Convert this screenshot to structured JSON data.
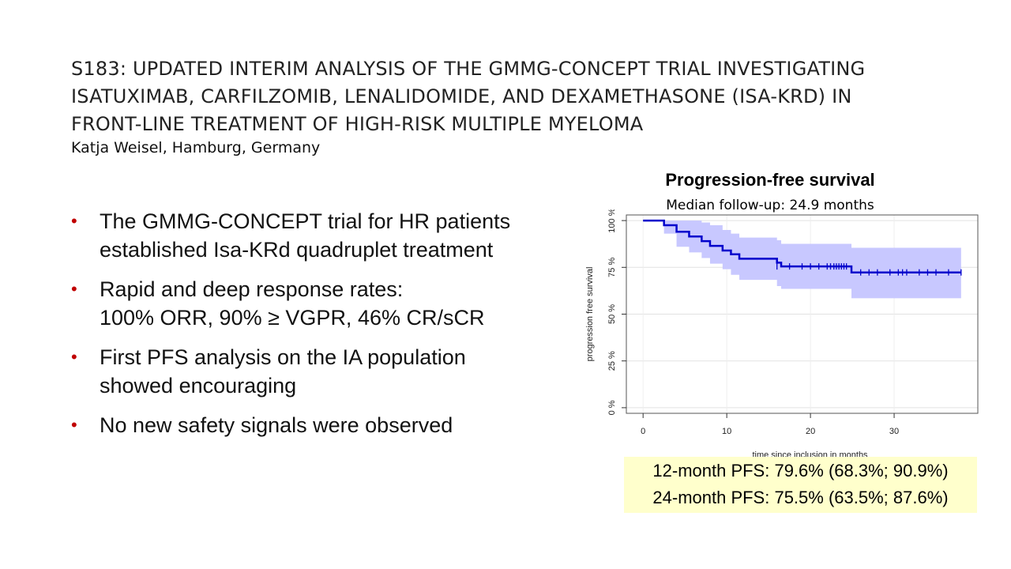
{
  "slide": {
    "title_lines": [
      "S183: UPDATED INTERIM ANALYSIS OF THE GMMG-CONCEPT TRIAL INVESTIGATING",
      "ISATUXIMAB, CARFILZOMIB, LENALIDOMIDE, AND DEXAMETHASONE (ISA-KRD) IN",
      "FRONT-LINE TREATMENT OF HIGH-RISK MULTIPLE MYELOMA"
    ],
    "author": "Katja Weisel, Hamburg, Germany",
    "bullets": [
      "The GMMG-CONCEPT trial for HR patients\nestablished Isa-KRd quadruplet treatment",
      "Rapid and deep response rates:\n100% ORR, 90% ≥ VGPR, 46% CR/sCR",
      "First PFS analysis on the IA population\nshowed encouraging",
      "No new safety signals were observed"
    ],
    "bullet_symbol": "•",
    "pfs_box": {
      "line1": "12-month PFS:  79.6% (68.3%; 90.9%)",
      "line2": "24-month PFS:  75.5% (63.5%; 87.6%)"
    },
    "colors": {
      "bullet": "#c00000",
      "curve": "#0000cc",
      "ci_band": "#c8c8ff",
      "box": "#ffffcc"
    }
  },
  "chart_data": {
    "type": "line",
    "title": "Progression-free survival",
    "subtitle": "Median follow-up: 24.9 months",
    "xlabel": "time since inclusion in months",
    "ylabel": "progression free survival",
    "xlim": [
      -2,
      40
    ],
    "ylim": [
      -3,
      103
    ],
    "xticks": [
      0,
      10,
      20,
      30
    ],
    "xtick_labels": [
      "0",
      "10",
      "20",
      "30"
    ],
    "yticks": [
      0,
      25,
      50,
      75,
      100
    ],
    "ytick_labels": [
      "0 %",
      "25 %",
      "50 %",
      "75 %",
      "100 %"
    ],
    "grid": true,
    "series": [
      {
        "kind": "step",
        "x": [
          0,
          2.5,
          4,
          5.5,
          7,
          8,
          9.5,
          10.5,
          11.5,
          16,
          16.5,
          24.9,
          38
        ],
        "y": [
          100,
          97.5,
          94,
          91.5,
          89,
          86.5,
          84,
          82,
          79.6,
          77.5,
          75.5,
          72.3,
          72.3
        ]
      }
    ],
    "ci_band": {
      "x": [
        0,
        2.5,
        4,
        5.5,
        7,
        8,
        9.5,
        10.5,
        11.5,
        16,
        16.5,
        24.9,
        38
      ],
      "lower": [
        100,
        93,
        86,
        83,
        80,
        77,
        74,
        71,
        68.3,
        65,
        63.5,
        58.5,
        58.5
      ],
      "upper": [
        100,
        100,
        100,
        100,
        99,
        97.5,
        95,
        93,
        90.9,
        89.5,
        87.6,
        85.5,
        85.5
      ]
    },
    "censor_marks": {
      "x": [
        16,
        17.5,
        19,
        20,
        21,
        22,
        22.4,
        22.8,
        23.1,
        23.4,
        23.7,
        24,
        24.3,
        26,
        27,
        28,
        29.5,
        30.5,
        31,
        31.5,
        33,
        34,
        35,
        36.5,
        38
      ],
      "y": [
        75.5,
        75.5,
        75.5,
        75.5,
        75.5,
        75.5,
        75.5,
        75.5,
        75.5,
        75.5,
        75.5,
        75.5,
        75.5,
        72.3,
        72.3,
        72.3,
        72.3,
        72.3,
        72.3,
        72.3,
        72.3,
        72.3,
        72.3,
        72.3,
        72.3
      ]
    }
  }
}
